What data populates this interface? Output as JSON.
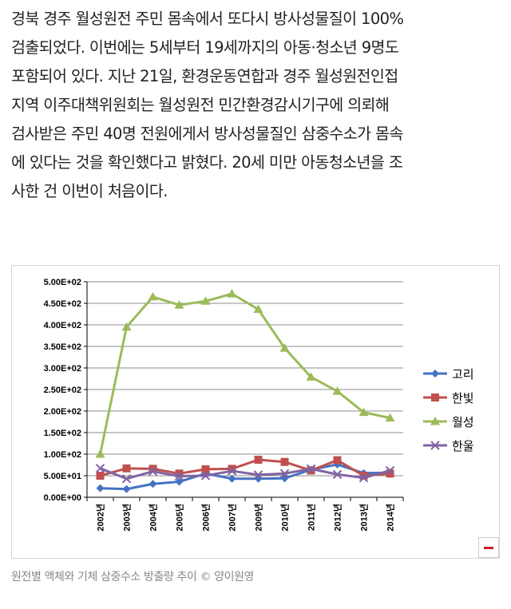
{
  "article": {
    "lines": [
      "경북 경주 월성원전 주민 몸속에서 또다시 방사성물질이 100%",
      "검출되었다. 이번에는 5세부터 19세까지의 아동·청소년 9명도",
      "포함되어 있다. 지난 21일, 환경운동연합과 경주 월성원전인접",
      "지역 이주대책위원회는 월성원전 민간환경감시기구에 의뢰해",
      "검사받은 주민 40명 전원에게서 방사성물질인 삼중수소가 몸속",
      "에 있다는 것을 확인했다고 밝혔다. 20세 미만 아동청소년을 조",
      "사한 건 이번이 처음이다."
    ]
  },
  "caption": "원전별 액체와 기체 삼중수소 방출량 추이 © 양이원영",
  "colors": {
    "grid": "#8c8c8c",
    "axis": "#000000",
    "series": [
      "#4472c4",
      "#c0504d",
      "#9bbb59",
      "#8064a2"
    ]
  },
  "icons": {
    "expand": "minus-icon"
  },
  "chart_data": {
    "type": "line",
    "categories": [
      "2002년",
      "2003년",
      "2004년",
      "2005년",
      "2006년",
      "2007년",
      "2009년",
      "2010년",
      "2011년",
      "2012년",
      "2013년",
      "2014년"
    ],
    "ylim": [
      0,
      500
    ],
    "yticks": [
      0,
      50,
      100,
      150,
      200,
      250,
      300,
      350,
      400,
      450,
      500
    ],
    "ytick_labels": [
      "0.00E+00",
      "5.00E+01",
      "1.00E+02",
      "1.50E+02",
      "2.00E+02",
      "2.50E+02",
      "3.00E+02",
      "3.50E+02",
      "4.00E+02",
      "4.50E+02",
      "5.00E+02"
    ],
    "grid": true,
    "legend_position": "right",
    "series": [
      {
        "name": "고리",
        "marker": "diamond",
        "values": [
          21,
          19,
          31,
          36,
          55,
          43,
          43,
          44,
          64,
          76,
          56,
          57
        ]
      },
      {
        "name": "한빛",
        "marker": "square",
        "values": [
          50,
          67,
          66,
          55,
          65,
          66,
          87,
          82,
          62,
          86,
          50,
          55
        ]
      },
      {
        "name": "월성",
        "marker": "triangle",
        "values": [
          100,
          395,
          465,
          446,
          455,
          472,
          436,
          346,
          279,
          246,
          197,
          184
        ]
      },
      {
        "name": "한울",
        "marker": "x",
        "values": [
          67,
          43,
          60,
          49,
          50,
          61,
          52,
          55,
          66,
          53,
          45,
          62
        ]
      }
    ]
  }
}
